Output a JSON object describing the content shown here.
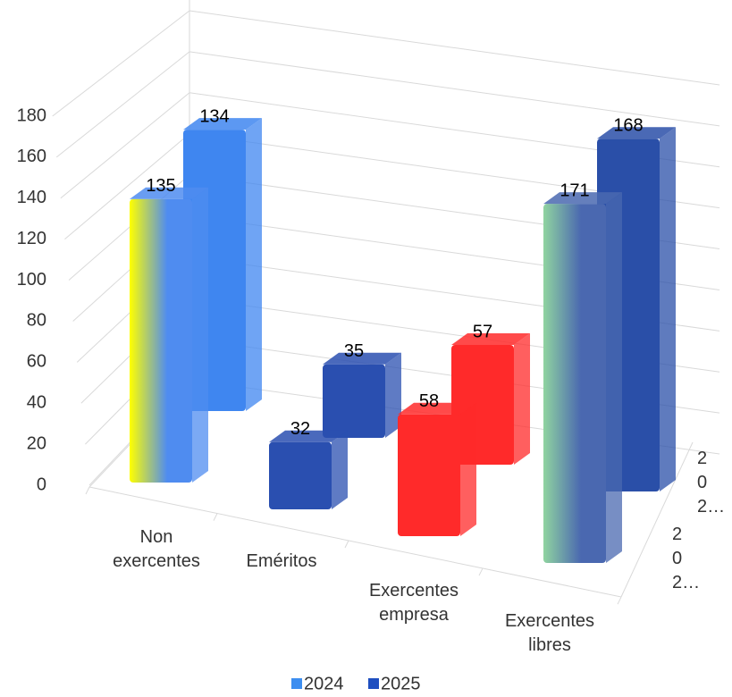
{
  "chart_data": {
    "type": "bar3d",
    "categories": [
      "Non exercentes",
      "Eméritos",
      "Exercentes empresa",
      "Exercentes libres"
    ],
    "series": [
      {
        "name": "2024",
        "color": "#3d8ef0",
        "values": [
          135,
          32,
          58,
          171
        ],
        "colors": [
          [
            "#ffff00",
            "#4f8cf0"
          ],
          "#2a4fb0",
          "#ff2a2a",
          [
            "#90d4a0",
            "#4a68b0"
          ]
        ]
      },
      {
        "name": "2025",
        "color": "#1f4fc0",
        "values": [
          134,
          35,
          57,
          168
        ],
        "colors": [
          "#3f86f0",
          "#2a4fb0",
          "#ff2a2a",
          "#2a4fa8"
        ]
      }
    ],
    "depth_labels": [
      "2 0 2…",
      "2 0 2…"
    ],
    "ylim": [
      0,
      180
    ],
    "yticks": [
      0,
      20,
      40,
      60,
      80,
      100,
      120,
      140,
      160,
      180
    ],
    "grid": true,
    "legend": "bottom"
  }
}
